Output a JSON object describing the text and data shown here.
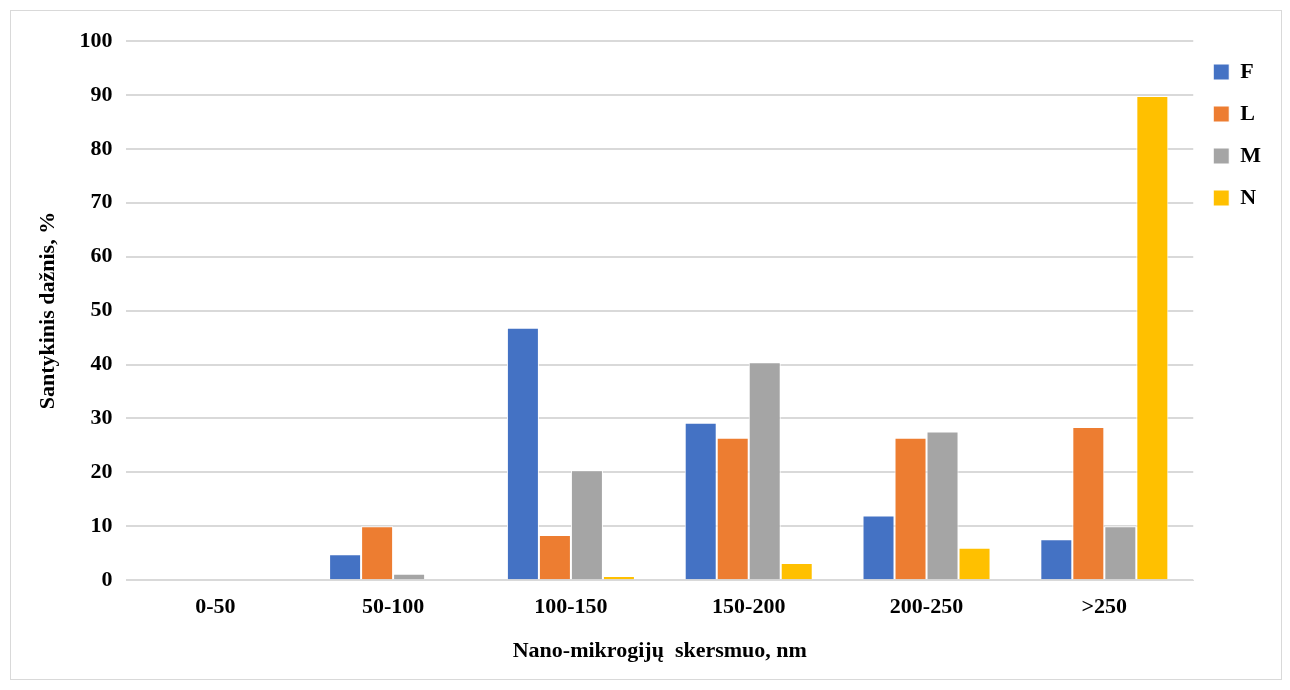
{
  "chart_data": {
    "type": "bar",
    "xlabel": "Nano-mikrogijų  skersmuo, nm",
    "ylabel": "Santykinis dažnis, %",
    "categories": [
      "0-50",
      "50-100",
      "100-150",
      "150-200",
      "200-250",
      ">250"
    ],
    "series": [
      {
        "name": "F",
        "color": "#4472c4",
        "values": [
          0,
          4.8,
          46.8,
          29.2,
          12.0,
          7.6
        ]
      },
      {
        "name": "L",
        "color": "#ed7d31",
        "values": [
          0,
          10.0,
          8.4,
          26.4,
          26.4,
          28.4
        ]
      },
      {
        "name": "M",
        "color": "#a5a5a5",
        "values": [
          0,
          1.2,
          20.4,
          40.4,
          27.6,
          10.0
        ]
      },
      {
        "name": "N",
        "color": "#ffc000",
        "values": [
          0,
          0,
          0.8,
          3.2,
          6.0,
          89.8
        ]
      }
    ],
    "ylim": [
      0,
      100
    ],
    "yticks": [
      0,
      10,
      20,
      30,
      40,
      50,
      60,
      70,
      80,
      90,
      100
    ],
    "grid": "y",
    "legend": "top right"
  }
}
